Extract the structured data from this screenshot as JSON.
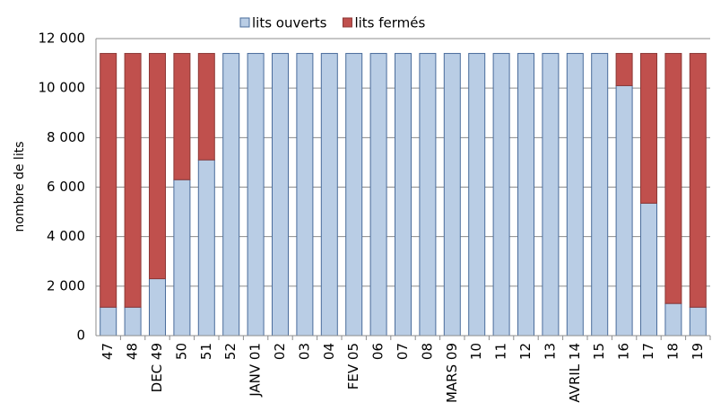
{
  "chart_data": {
    "type": "stacked_bar",
    "y_label": "nombre de lits",
    "categories": [
      "47",
      "48",
      "DEC 49",
      "50",
      "51",
      "52",
      "JANV 01",
      "02",
      "03",
      "04",
      "FEV 05",
      "06",
      "07",
      "08",
      "MARS 09",
      "10",
      "11",
      "12",
      "13",
      "AVRIL 14",
      "15",
      "16",
      "17",
      "18",
      "19"
    ],
    "series": [
      {
        "name": "lits ouverts",
        "color": "#b9cde5",
        "stroke": "#4a6c9b",
        "values": [
          1150,
          1150,
          2300,
          6300,
          7100,
          11400,
          11400,
          11400,
          11400,
          11400,
          11400,
          11400,
          11400,
          11400,
          11400,
          11400,
          11400,
          11400,
          11400,
          11400,
          11400,
          10100,
          5350,
          1300,
          1150
        ]
      },
      {
        "name": "lits fermés",
        "color": "#c0504d",
        "stroke": "#8c3836",
        "values": [
          10250,
          10250,
          9100,
          5100,
          4300,
          0,
          0,
          0,
          0,
          0,
          0,
          0,
          0,
          0,
          0,
          0,
          0,
          0,
          0,
          0,
          0,
          1300,
          6050,
          10100,
          10250
        ]
      }
    ],
    "ylim": [
      0,
      12000
    ],
    "yticks": [
      0,
      {
        "value": 2000,
        "label": "2 000"
      },
      {
        "value": 4000,
        "label": "4 000"
      },
      {
        "value": 6000,
        "label": "6 000"
      },
      {
        "value": 8000,
        "label": "8 000"
      },
      {
        "value": 10000,
        "label": "10 000"
      },
      {
        "value": 12000,
        "label": "12 000"
      }
    ],
    "grid": true,
    "legend": "top"
  }
}
